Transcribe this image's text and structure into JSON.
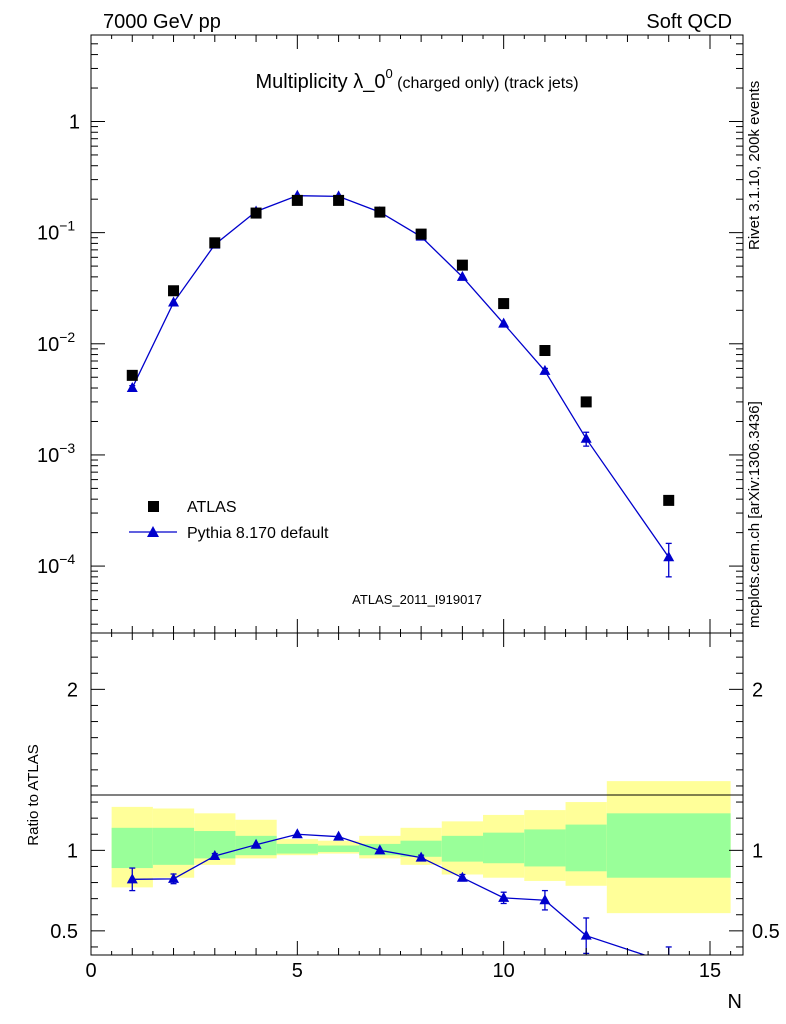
{
  "header": {
    "left": "7000 GeV pp",
    "right": "Soft QCD"
  },
  "title": {
    "main": "Multiplicity λ_0",
    "sup": "0",
    "sub": " (charged only) (track jets)"
  },
  "side_labels": {
    "rivet": "Rivet 3.1.10,  200k events",
    "mcplots": "mcplots.cern.ch [arXiv:1306.3436]"
  },
  "analysis_id": "ATLAS_2011_I919017",
  "colors": {
    "mc": "#0000cc",
    "band_inner": "#99ff99",
    "band_outer": "#ffff99",
    "analysis_text": "#999999",
    "side_text": "#808080"
  },
  "chart_data": [
    {
      "type": "scatter",
      "panel": "main",
      "xlim": [
        0,
        15.8
      ],
      "ylim": [
        2.5e-05,
        6
      ],
      "log_y": true,
      "y_ticks": [
        {
          "base": "10",
          "exp": "−4"
        },
        {
          "base": "10",
          "exp": "−3"
        },
        {
          "base": "10",
          "exp": "−2"
        },
        {
          "base": "10",
          "exp": "−1"
        },
        {
          "base": "1",
          "exp": ""
        }
      ],
      "legend_position": "bottom-left",
      "series": [
        {
          "name": "ATLAS",
          "marker": "square",
          "x": [
            1,
            2,
            3,
            4,
            5,
            6,
            7,
            8,
            9,
            10,
            11,
            12,
            14
          ],
          "y": [
            0.0052,
            0.03,
            0.081,
            0.15,
            0.195,
            0.195,
            0.153,
            0.097,
            0.051,
            0.023,
            0.0087,
            0.003,
            0.00039
          ]
        },
        {
          "name": "Pythia 8.170 default",
          "marker": "triangle",
          "x": [
            1,
            2,
            3,
            4,
            5,
            6,
            7,
            8,
            9,
            10,
            11,
            12,
            14
          ],
          "y": [
            0.004,
            0.0235,
            0.078,
            0.155,
            0.215,
            0.212,
            0.153,
            0.092,
            0.04,
            0.0152,
            0.0057,
            0.0014,
            0.00012
          ],
          "err_low": [
            0.0002,
            0.0005,
            0.001,
            0.002,
            0.002,
            0.002,
            0.002,
            0.0015,
            0.001,
            0.0006,
            0.0003,
            0.0002,
            4e-05
          ],
          "err_high": [
            0.0002,
            0.0005,
            0.001,
            0.002,
            0.002,
            0.002,
            0.002,
            0.0015,
            0.001,
            0.0006,
            0.0003,
            0.0002,
            4e-05
          ]
        }
      ]
    },
    {
      "type": "line",
      "panel": "ratio",
      "ylabel": "Ratio to ATLAS",
      "xlabel": "N",
      "xlim": [
        0,
        15.8
      ],
      "ylim": [
        0.35,
        2.35
      ],
      "x_ticks": [
        "0",
        "5",
        "10",
        "15"
      ],
      "y_ticks": [
        "0.5",
        "1",
        "2"
      ],
      "y_tick_values": [
        0.5,
        1,
        2
      ],
      "bands": {
        "edges": [
          [
            0.5,
            1.5
          ],
          [
            1.5,
            2.5
          ],
          [
            2.5,
            3.5
          ],
          [
            3.5,
            4.5
          ],
          [
            4.5,
            5.5
          ],
          [
            5.5,
            6.5
          ],
          [
            6.5,
            7.5
          ],
          [
            7.5,
            8.5
          ],
          [
            8.5,
            9.5
          ],
          [
            9.5,
            10.5
          ],
          [
            10.5,
            11.5
          ],
          [
            11.5,
            12.5
          ],
          [
            12.5,
            15.5
          ]
        ],
        "outer_low": [
          0.77,
          0.83,
          0.91,
          0.95,
          0.97,
          0.98,
          0.95,
          0.91,
          0.85,
          0.83,
          0.81,
          0.78,
          0.61
        ],
        "outer_high": [
          1.27,
          1.26,
          1.23,
          1.19,
          1.07,
          1.06,
          1.09,
          1.14,
          1.18,
          1.22,
          1.25,
          1.3,
          1.43
        ],
        "inner_low": [
          0.89,
          0.91,
          0.95,
          0.97,
          0.98,
          0.99,
          0.97,
          0.96,
          0.93,
          0.92,
          0.9,
          0.87,
          0.83
        ],
        "inner_high": [
          1.14,
          1.14,
          1.12,
          1.09,
          1.04,
          1.03,
          1.04,
          1.06,
          1.09,
          1.11,
          1.13,
          1.16,
          1.23
        ]
      },
      "series": [
        {
          "name": "Pythia 8.170 default",
          "x": [
            1,
            2,
            3,
            4,
            5,
            6,
            7,
            8,
            9,
            10,
            11,
            12,
            14
          ],
          "y": [
            0.82,
            0.823,
            0.965,
            1.035,
            1.1,
            1.085,
            1.0,
            0.955,
            0.83,
            0.705,
            0.69,
            0.47,
            0.3
          ],
          "err_low": [
            0.07,
            0.03,
            0.015,
            0.012,
            0.01,
            0.01,
            0.012,
            0.015,
            0.02,
            0.035,
            0.06,
            0.11,
            0.1
          ],
          "err_high": [
            0.07,
            0.03,
            0.015,
            0.012,
            0.01,
            0.01,
            0.012,
            0.015,
            0.02,
            0.035,
            0.06,
            0.11,
            0.1
          ]
        }
      ]
    }
  ]
}
